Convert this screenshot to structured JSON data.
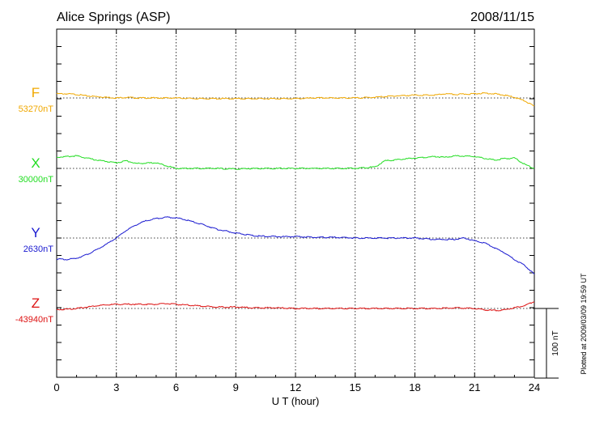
{
  "header": {
    "station": "Alice Springs (ASP)",
    "date": "2008/11/15"
  },
  "footer": {
    "plotted_note": "Plotted at 2009/03/09 19:59 UT",
    "scale_label": "100 nT"
  },
  "chart_data": {
    "type": "line",
    "title": "Alice Springs (ASP)",
    "subtitle": "2008/11/15",
    "xlabel": "U T (hour)",
    "ylabel": "",
    "xlim": [
      0,
      24
    ],
    "x_ticks": [
      0,
      3,
      6,
      9,
      12,
      15,
      18,
      21,
      24
    ],
    "x_tick_labels": [
      "0",
      "3",
      "6",
      "9",
      "12",
      "15",
      "18",
      "21",
      "24"
    ],
    "grid": true,
    "scale_bar_nT": 100,
    "series": [
      {
        "name": "F",
        "base_label": "53270nT",
        "baseline_nT": 53270,
        "color": "#f0a800",
        "x": [
          0,
          0.5,
          1,
          1.5,
          2,
          2.5,
          3,
          3.5,
          4,
          5,
          6,
          7,
          8,
          9,
          10,
          11,
          12,
          13,
          14,
          15,
          16,
          17,
          18,
          19,
          19.5,
          20,
          21,
          21.5,
          22,
          22.5,
          23,
          23.5,
          24
        ],
        "values": [
          6,
          6,
          5,
          3,
          2,
          1,
          0,
          1,
          0,
          0,
          0,
          -1,
          -1,
          -1,
          -1,
          -1,
          -1,
          0,
          0,
          0,
          1,
          3,
          4,
          4,
          6,
          5,
          6,
          7,
          6,
          4,
          1,
          -4,
          -12
        ]
      },
      {
        "name": "X",
        "base_label": "30000nT",
        "baseline_nT": 30000,
        "color": "#22dd22",
        "x": [
          0,
          0.5,
          1,
          1.5,
          2,
          2.5,
          3,
          3.5,
          4,
          5,
          5.5,
          6,
          7,
          8,
          9,
          10,
          11,
          12,
          13,
          14,
          15,
          16,
          16.5,
          17,
          18,
          19,
          19.5,
          20,
          21,
          22,
          22.5,
          23,
          23.5,
          24
        ],
        "values": [
          16,
          17,
          18,
          15,
          12,
          10,
          8,
          11,
          7,
          8,
          4,
          0,
          0,
          0,
          -1,
          0,
          0,
          0,
          0,
          0,
          0,
          2,
          11,
          12,
          15,
          17,
          16,
          18,
          17,
          12,
          14,
          15,
          6,
          0
        ]
      },
      {
        "name": "Y",
        "base_label": "2630nT",
        "baseline_nT": 2630,
        "color": "#1a1ad0",
        "x": [
          0,
          0.5,
          1,
          1.5,
          2,
          2.5,
          3,
          3.5,
          4,
          4.5,
          5,
          5.5,
          6,
          6.5,
          7,
          7.5,
          8,
          9,
          10,
          11,
          12,
          13,
          14,
          15,
          16,
          17,
          18,
          19,
          20,
          20.5,
          21,
          21.5,
          22,
          22.5,
          23,
          23.5,
          24
        ],
        "values": [
          -30,
          -31,
          -29,
          -24,
          -17,
          -9,
          0,
          11,
          19,
          25,
          28,
          30,
          29,
          26,
          22,
          18,
          13,
          7,
          3,
          2,
          2,
          1,
          1,
          0,
          0,
          0,
          0,
          -2,
          -2,
          0,
          -4,
          -7,
          -14,
          -21,
          -31,
          -39,
          -52
        ]
      },
      {
        "name": "Z",
        "base_label": "-43940nT",
        "baseline_nT": -43940,
        "color": "#dd1111",
        "x": [
          0,
          0.5,
          1,
          1.5,
          2,
          2.5,
          3,
          3.5,
          4,
          5,
          5.5,
          6,
          7,
          8,
          9,
          10,
          11,
          12,
          13,
          14,
          15,
          16,
          17,
          18,
          19,
          20,
          21,
          21.5,
          22,
          22.5,
          23,
          23.5,
          24
        ],
        "values": [
          -2,
          -1,
          0,
          2,
          4,
          5,
          6,
          6,
          6,
          6,
          7,
          6,
          4,
          2,
          2,
          1,
          1,
          0,
          0,
          0,
          0,
          0,
          0,
          0,
          0,
          1,
          0,
          -2,
          -3,
          -2,
          1,
          4,
          10
        ]
      }
    ]
  }
}
